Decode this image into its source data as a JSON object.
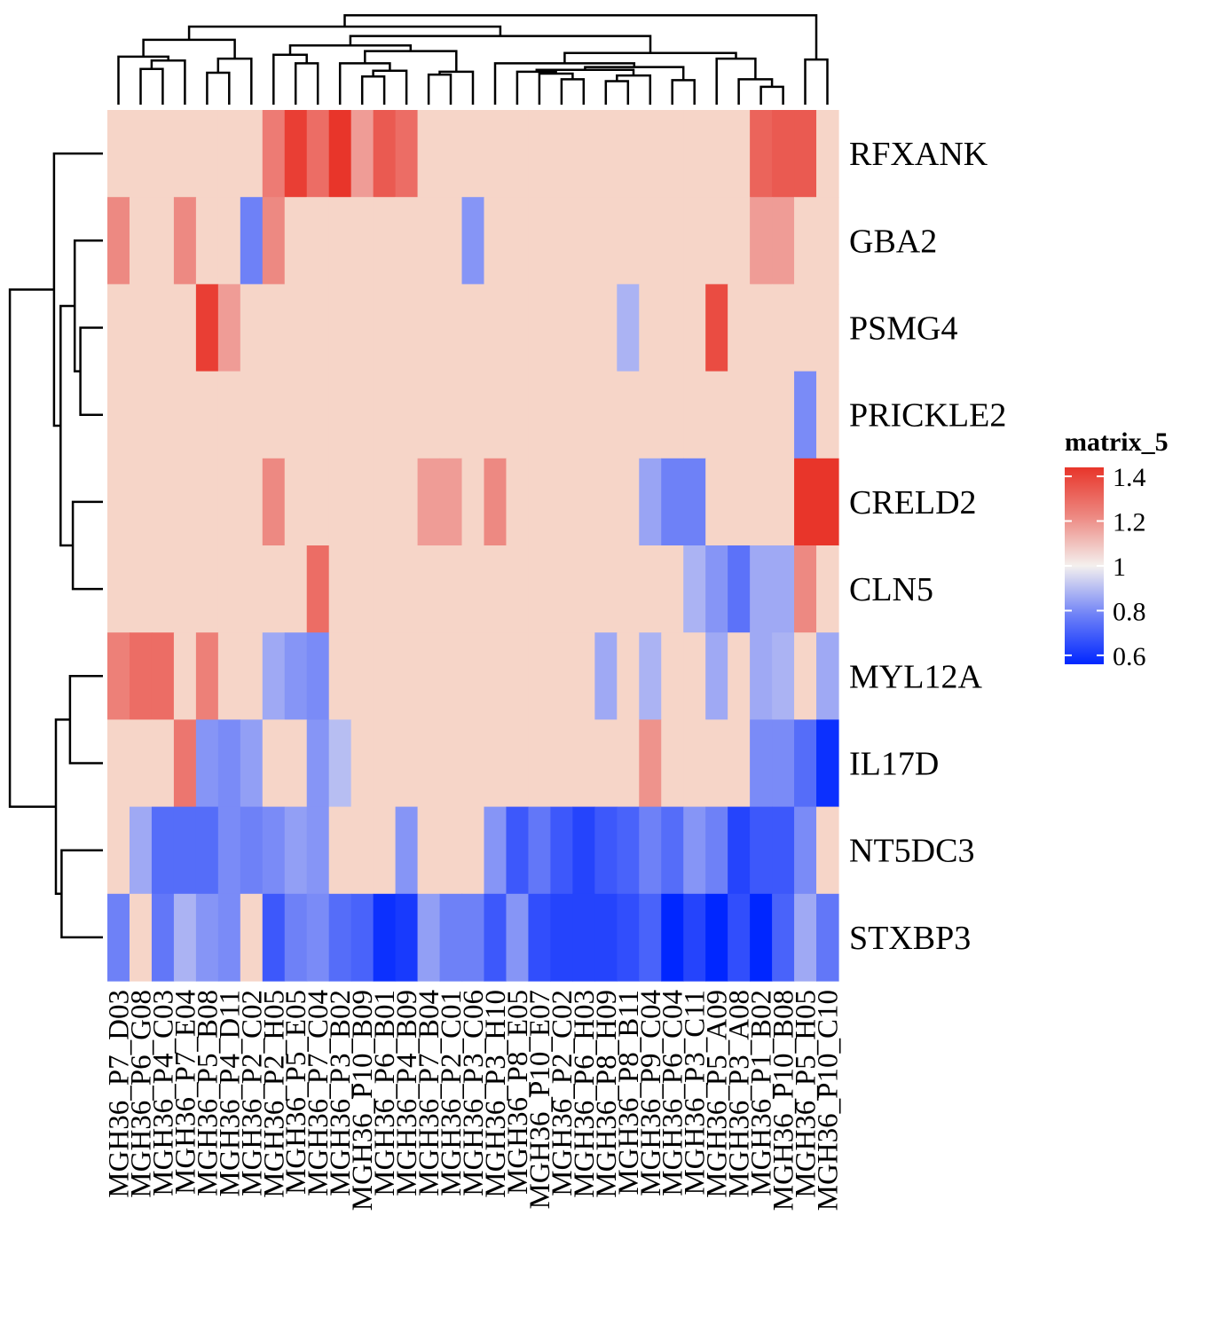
{
  "chart_data": {
    "type": "heatmap",
    "title": "",
    "rows": [
      "RFXANK",
      "GBA2",
      "PSMG4",
      "PRICKLE2",
      "CRELD2",
      "CLN5",
      "MYL12A",
      "IL17D",
      "NT5DC3",
      "STXBP3"
    ],
    "columns": [
      "MGH36_P7_D03",
      "MGH36_P6_G08",
      "MGH36_P4_C03",
      "MGH36_P7_E04",
      "MGH36_P5_B08",
      "MGH36_P4_D11",
      "MGH36_P2_C02",
      "MGH36_P2_H05",
      "MGH36_P5_E05",
      "MGH36_P7_C04",
      "MGH36_P3_B02",
      "MGH36_P10_B09",
      "MGH36_P6_B01",
      "MGH36_P4_B09",
      "MGH36_P7_B04",
      "MGH36_P2_C01",
      "MGH36_P3_C06",
      "MGH36_P3_H10",
      "MGH36_P8_E05",
      "MGH36_P10_E07",
      "MGH36_P2_C02",
      "MGH36_P6_H03",
      "MGH36_P8_H09",
      "MGH36_P8_B11",
      "MGH36_P9_C04",
      "MGH36_P6_C04",
      "MGH36_P3_C11",
      "MGH36_P5_A09",
      "MGH36_P3_A08",
      "MGH36_P1_B02",
      "MGH36_P10_B08",
      "MGH36_P5_H05",
      "MGH36_P10_C10"
    ],
    "values": [
      [
        1.0,
        1.0,
        1.0,
        1.0,
        1.0,
        1.0,
        1.0,
        1.25,
        1.38,
        1.28,
        1.4,
        1.18,
        1.32,
        1.28,
        1.0,
        1.0,
        1.0,
        1.0,
        1.0,
        1.0,
        1.0,
        1.0,
        1.0,
        1.0,
        1.0,
        1.0,
        1.0,
        1.0,
        1.0,
        1.3,
        1.32,
        1.32,
        1.0
      ],
      [
        1.22,
        1.0,
        1.0,
        1.22,
        1.0,
        1.0,
        0.78,
        1.22,
        1.0,
        1.0,
        1.0,
        1.0,
        1.0,
        1.0,
        1.0,
        1.0,
        0.82,
        1.0,
        1.0,
        1.0,
        1.0,
        1.0,
        1.0,
        1.0,
        1.0,
        1.0,
        1.0,
        1.0,
        1.0,
        1.18,
        1.18,
        1.0,
        1.0
      ],
      [
        1.0,
        1.0,
        1.0,
        1.0,
        1.38,
        1.18,
        1.0,
        1.0,
        1.0,
        1.0,
        1.0,
        1.0,
        1.0,
        1.0,
        1.0,
        1.0,
        1.0,
        1.0,
        1.0,
        1.0,
        1.0,
        1.0,
        1.0,
        0.88,
        1.0,
        1.0,
        1.0,
        1.35,
        1.0,
        1.0,
        1.0,
        1.0,
        1.0
      ],
      [
        1.0,
        1.0,
        1.0,
        1.0,
        1.0,
        1.0,
        1.0,
        1.0,
        1.0,
        1.0,
        1.0,
        1.0,
        1.0,
        1.0,
        1.0,
        1.0,
        1.0,
        1.0,
        1.0,
        1.0,
        1.0,
        1.0,
        1.0,
        1.0,
        1.0,
        1.0,
        1.0,
        1.0,
        1.0,
        1.0,
        1.0,
        0.8,
        1.0
      ],
      [
        1.0,
        1.0,
        1.0,
        1.0,
        1.0,
        1.0,
        1.0,
        1.22,
        1.0,
        1.0,
        1.0,
        1.0,
        1.0,
        1.0,
        1.18,
        1.18,
        1.0,
        1.22,
        1.0,
        1.0,
        1.0,
        1.0,
        1.0,
        1.0,
        0.85,
        0.78,
        0.78,
        1.0,
        1.0,
        1.0,
        1.0,
        1.4,
        1.4
      ],
      [
        1.0,
        1.0,
        1.0,
        1.0,
        1.0,
        1.0,
        1.0,
        1.0,
        1.0,
        1.28,
        1.0,
        1.0,
        1.0,
        1.0,
        1.0,
        1.0,
        1.0,
        1.0,
        1.0,
        1.0,
        1.0,
        1.0,
        1.0,
        1.0,
        1.0,
        1.0,
        0.88,
        0.82,
        0.75,
        0.86,
        0.86,
        1.22,
        1.0
      ],
      [
        1.24,
        1.28,
        1.28,
        1.0,
        1.24,
        1.0,
        1.0,
        0.86,
        0.82,
        0.8,
        1.0,
        1.0,
        1.0,
        1.0,
        1.0,
        1.0,
        1.0,
        1.0,
        1.0,
        1.0,
        1.0,
        1.0,
        0.86,
        1.0,
        0.88,
        1.0,
        1.0,
        0.86,
        1.0,
        0.86,
        0.88,
        1.0,
        0.86
      ],
      [
        1.0,
        1.0,
        1.0,
        1.26,
        0.82,
        0.8,
        0.84,
        1.0,
        1.0,
        0.82,
        0.9,
        1.0,
        1.0,
        1.0,
        1.0,
        1.0,
        1.0,
        1.0,
        1.0,
        1.0,
        1.0,
        1.0,
        1.0,
        1.0,
        1.2,
        1.0,
        1.0,
        1.0,
        1.0,
        0.8,
        0.8,
        0.74,
        0.62
      ],
      [
        1.0,
        0.86,
        0.74,
        0.74,
        0.74,
        0.8,
        0.78,
        0.8,
        0.84,
        0.82,
        1.0,
        1.0,
        1.0,
        0.82,
        1.0,
        1.0,
        1.0,
        0.82,
        0.7,
        0.76,
        0.7,
        0.66,
        0.7,
        0.72,
        0.78,
        0.74,
        0.82,
        0.78,
        0.66,
        0.7,
        0.7,
        0.8,
        1.0
      ],
      [
        0.78,
        1.0,
        0.76,
        0.88,
        0.82,
        0.8,
        1.0,
        0.7,
        0.78,
        0.8,
        0.74,
        0.72,
        0.62,
        0.64,
        0.84,
        0.78,
        0.78,
        0.7,
        0.82,
        0.68,
        0.66,
        0.66,
        0.66,
        0.68,
        0.72,
        0.6,
        0.66,
        0.6,
        0.68,
        0.6,
        0.72,
        0.86,
        0.76
      ]
    ],
    "legend": {
      "title": "matrix_5",
      "ticks": [
        "1.4",
        "1.2",
        "1",
        "0.8",
        "0.6"
      ],
      "tick_values": [
        1.4,
        1.2,
        1.0,
        0.8,
        0.6
      ],
      "range": [
        0.56,
        1.44
      ],
      "placement": "right"
    },
    "colors": {
      "low": "#0026ff",
      "mid": "#f4f0ee",
      "high": "#e8352a",
      "base": "#f6d5c8"
    }
  }
}
